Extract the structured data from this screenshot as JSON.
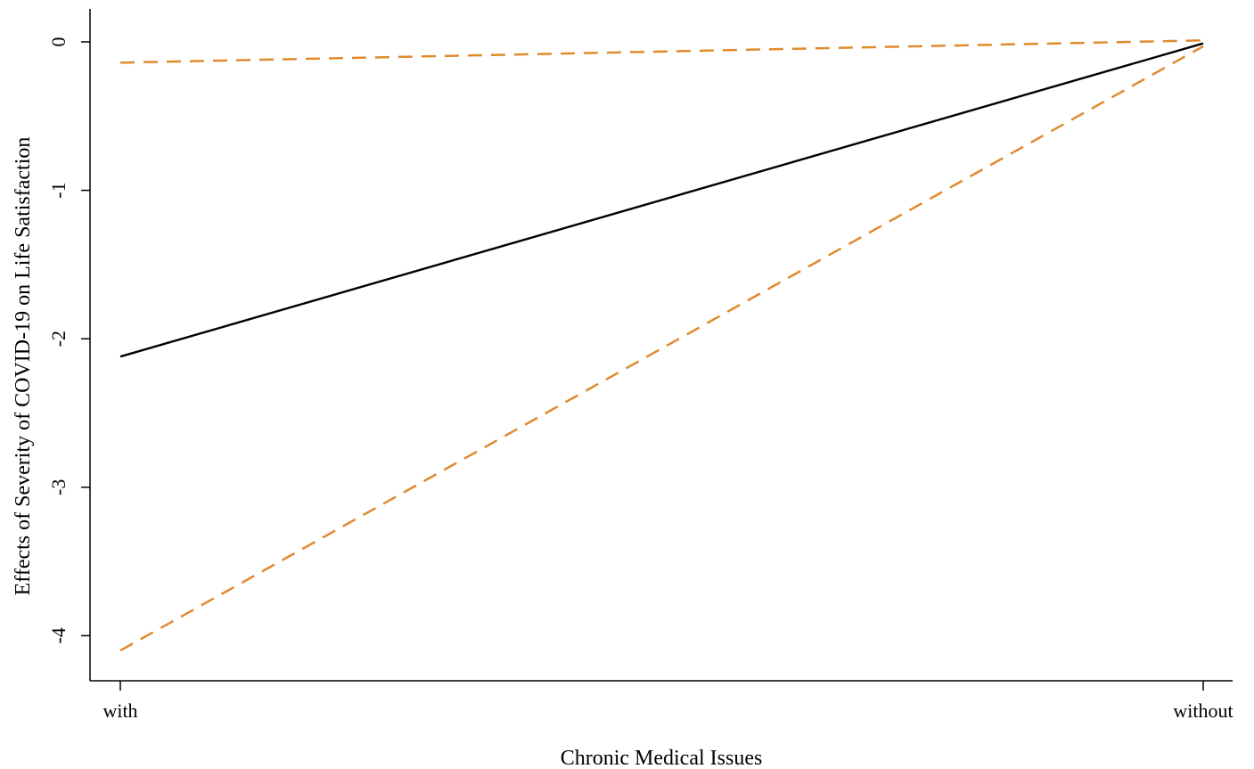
{
  "chart_data": {
    "type": "line",
    "xlabel": "Chronic Medical Issues",
    "ylabel": "Effects of Severity of COVID-19 on Life Satisfaction",
    "categories": [
      "with",
      "without"
    ],
    "ylim": [
      -4.3,
      0.22
    ],
    "yticks": [
      0,
      -1,
      -2,
      -3,
      -4
    ],
    "ytick_labels": [
      "0",
      "-1",
      "-2",
      "-3",
      "-4"
    ],
    "grid": false,
    "series": [
      {
        "values": [
          -2.12,
          -0.01
        ],
        "color": "#000000",
        "style": "solid"
      },
      {
        "values": [
          -0.14,
          0.01
        ],
        "color": "#e08a2e",
        "style": "dashed"
      },
      {
        "values": [
          -4.1,
          -0.03
        ],
        "color": "#e08a2e",
        "style": "dashed"
      }
    ]
  }
}
